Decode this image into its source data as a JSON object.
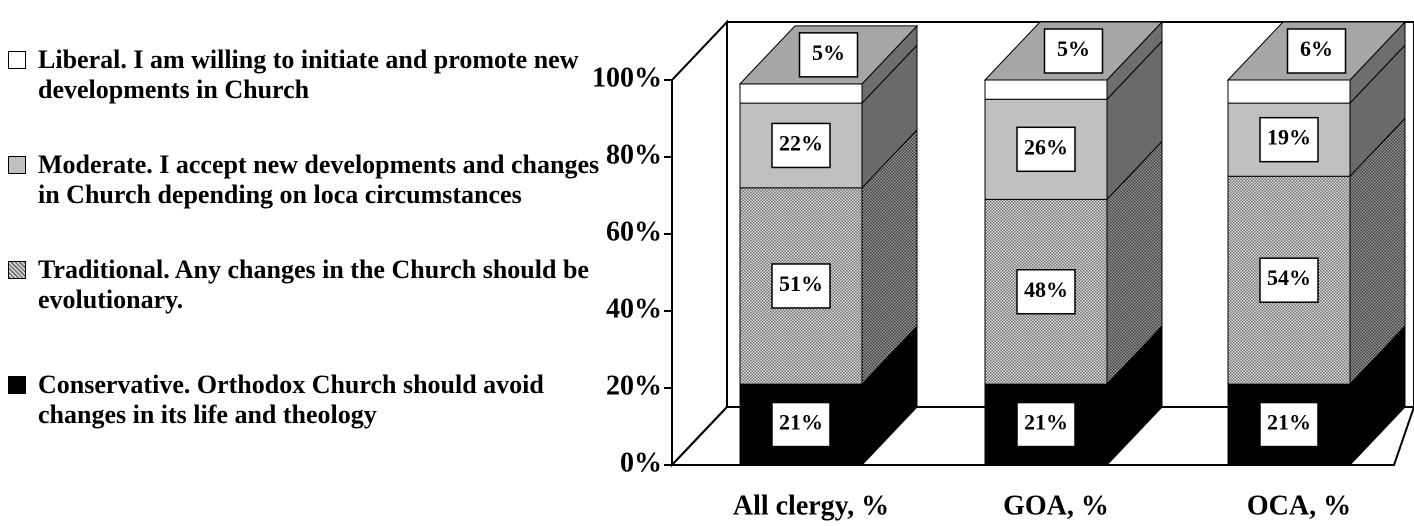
{
  "chart_data": {
    "type": "bar3d_stacked",
    "categories": [
      "All clergy, %",
      "GOA, %",
      "OCA, %"
    ],
    "series": [
      {
        "name": "Conservative. Orthodox Church should avoid changes in its life and theology",
        "color": "#000000",
        "values": [
          21,
          21,
          21
        ],
        "value_labels": [
          "21%",
          "21%",
          "21%"
        ]
      },
      {
        "name": "Traditional. Any changes in the Church should be evolutionary.",
        "color": "#6e6e6e",
        "pattern": "dots",
        "values": [
          51,
          48,
          54
        ],
        "value_labels": [
          "51%",
          "48%",
          "54%"
        ]
      },
      {
        "name": "Moderate. I accept new developments and changes in Church depending on loca circumstances",
        "color": "#c0c0c0",
        "values": [
          22,
          26,
          19
        ],
        "value_labels": [
          "22%",
          "26%",
          "19%"
        ]
      },
      {
        "name": "Liberal. I am willing to initiate and promote new developments in Church",
        "color": "#ffffff",
        "values": [
          5,
          5,
          6
        ],
        "value_labels": [
          "5%",
          "5%",
          "6%"
        ]
      }
    ],
    "ylim": [
      0,
      100
    ],
    "yticks": [
      {
        "value": 0,
        "label": "0%"
      },
      {
        "value": 20,
        "label": "20%"
      },
      {
        "value": 40,
        "label": "40%"
      },
      {
        "value": 60,
        "label": "60%"
      },
      {
        "value": 80,
        "label": "80%"
      },
      {
        "value": 100,
        "label": "100%"
      }
    ],
    "legend": "left"
  }
}
